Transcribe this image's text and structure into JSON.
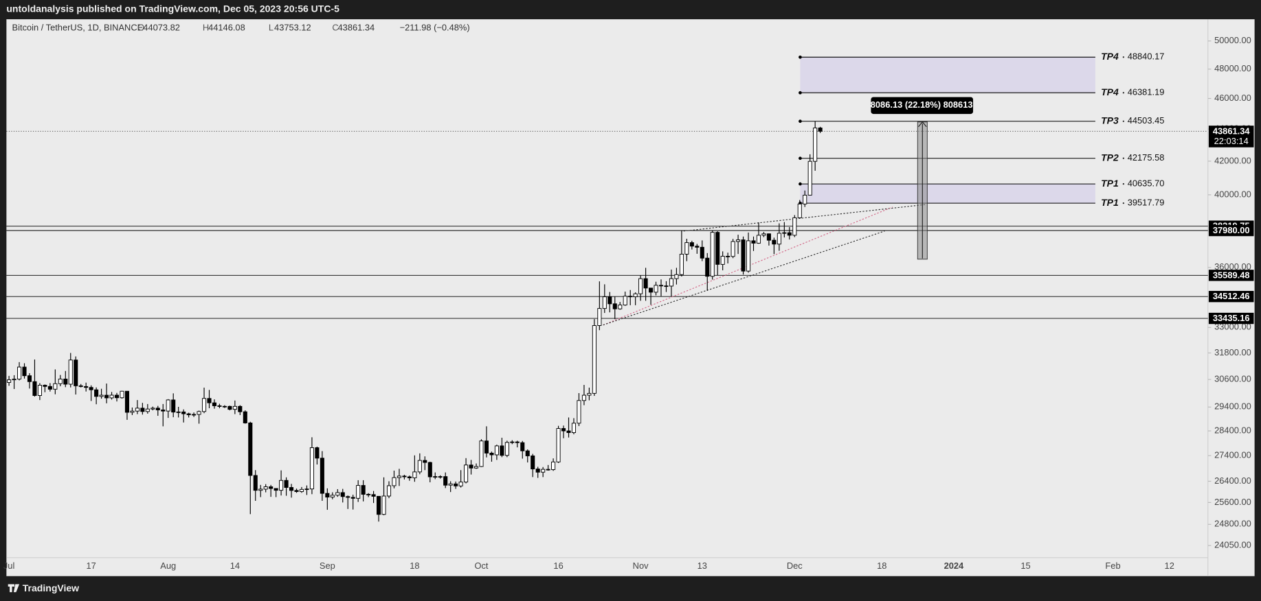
{
  "published_by": "untoldanalysis published on TradingView.com, Dec 05, 2023 20:56 UTC-5",
  "footer": "TradingView",
  "chart_data": {
    "type": "candlestick",
    "symbol": "Bitcoin / TetherUS, 1D, BINANCE",
    "ohlc_labels": [
      "O",
      "H",
      "L",
      "C"
    ],
    "change": "−211.98 (−0.48%)",
    "countdown": "22:03:14",
    "measure_label": "8086.13 (22.18%) 808613",
    "log_scale": true,
    "grid": false,
    "up_color": "#ffffff",
    "down_color": "#000000",
    "wick_color": "#000000",
    "zone_color": "#dcd8ea",
    "line_color": "#000000",
    "ylim": [
      23630,
      51600
    ],
    "yticks": [
      {
        "value": 24050,
        "label": "24050.00"
      },
      {
        "value": 24800,
        "label": "24800.00"
      },
      {
        "value": 25600,
        "label": "25600.00"
      },
      {
        "value": 26400,
        "label": "26400.00"
      },
      {
        "value": 27400,
        "label": "27400.00"
      },
      {
        "value": 28400,
        "label": "28400.00"
      },
      {
        "value": 29400,
        "label": "29400.00"
      },
      {
        "value": 30600,
        "label": "30600.00"
      },
      {
        "value": 31800,
        "label": "31800.00"
      },
      {
        "value": 33000,
        "label": "33000.00"
      },
      {
        "value": 36000,
        "label": "36000.00"
      },
      {
        "value": 40000,
        "label": "40000.00"
      },
      {
        "value": 42000,
        "label": "42000.00"
      },
      {
        "value": 44000,
        "label": "44000.00"
      },
      {
        "value": 46000,
        "label": "46000.00"
      },
      {
        "value": 48000,
        "label": "48000.00"
      },
      {
        "value": 50000,
        "label": "50000.00"
      }
    ],
    "levels": [
      38219.75,
      {
        "value": 37980,
        "label": "37980.00"
      },
      35589.48,
      34512.46,
      33435.16
    ],
    "targets": [
      {
        "name": "TP4",
        "value": 48840.17
      },
      {
        "name": "TP4",
        "value": 46381.19
      },
      {
        "name": "TP3",
        "value": 44503.45
      },
      {
        "name": "TP2",
        "value": 42175.58
      },
      {
        "name": "TP1",
        "value": 40635.7,
        "value_label": "40635.70"
      },
      {
        "name": "TP1",
        "value": 39517.79
      }
    ],
    "categories": [
      "Jul",
      null,
      null,
      null,
      null,
      null,
      null,
      null,
      null,
      null,
      null,
      null,
      null,
      null,
      null,
      null,
      "17",
      null,
      null,
      null,
      null,
      null,
      null,
      null,
      null,
      null,
      null,
      null,
      null,
      null,
      null,
      "Aug",
      null,
      null,
      null,
      null,
      null,
      null,
      null,
      null,
      null,
      null,
      null,
      null,
      "14",
      null,
      null,
      null,
      null,
      null,
      null,
      null,
      null,
      null,
      null,
      null,
      null,
      null,
      null,
      null,
      null,
      null,
      "Sep",
      null,
      null,
      null,
      null,
      null,
      null,
      null,
      null,
      null,
      null,
      null,
      null,
      null,
      null,
      null,
      null,
      "18",
      null,
      null,
      null,
      null,
      null,
      null,
      null,
      null,
      null,
      null,
      null,
      null,
      "Oct",
      null,
      null,
      null,
      null,
      null,
      null,
      null,
      null,
      null,
      null,
      null,
      null,
      null,
      null,
      "16",
      null,
      null,
      null,
      null,
      null,
      null,
      null,
      null,
      null,
      null,
      null,
      null,
      null,
      null,
      null,
      "Nov",
      null,
      null,
      null,
      null,
      null,
      null,
      null,
      null,
      null,
      null,
      null,
      "13",
      null,
      null,
      null,
      null,
      null,
      null,
      null,
      null,
      null,
      null,
      null,
      null,
      null,
      null,
      null,
      null,
      null,
      "Dec",
      null,
      null,
      null,
      null,
      null,
      null,
      null,
      null,
      null,
      null,
      null,
      null,
      null,
      null,
      null,
      null,
      "18",
      null,
      null,
      null,
      null,
      null,
      null,
      null,
      null,
      null,
      null,
      null,
      null,
      null,
      "2024",
      null,
      null,
      null,
      null,
      null,
      null,
      null,
      null,
      null,
      null,
      null,
      null,
      null,
      "15",
      null,
      null,
      null,
      null,
      null,
      null,
      null,
      null,
      null,
      null,
      null,
      null,
      null,
      null,
      null,
      null,
      "Feb",
      null,
      null,
      null,
      null,
      null,
      null,
      null,
      null,
      null,
      null,
      "12",
      null,
      null,
      null,
      null,
      null,
      null,
      null
    ],
    "open": [
      30470,
      30585,
      30617,
      31156,
      30767,
      30505,
      29896,
      30346,
      30292,
      30171,
      30414,
      30620,
      30391,
      31477,
      30320,
      30289,
      30249,
      30145,
      29857,
      29910,
      29794,
      29912,
      29800,
      30083,
      29176,
      29228,
      29354,
      29210,
      29316,
      29354,
      29278,
      29230,
      29705,
      29186,
      29193,
      29114,
      29072,
      29088,
      29210,
      29770,
      29581,
      29455,
      29426,
      29430,
      29303,
      29430,
      29200,
      28730,
      26623,
      26054,
      26100,
      26190,
      26125,
      26056,
      26432,
      26163,
      26050,
      26008,
      26090,
      26107,
      27717,
      27300,
      25940,
      25800,
      25870,
      25970,
      25820,
      25790,
      25755,
      26240,
      25905,
      25895,
      25830,
      25160,
      25840,
      26230,
      26540,
      26600,
      26570,
      26530,
      26760,
      27210,
      27130,
      26570,
      26580,
      26580,
      26250,
      26300,
      26220,
      26370,
      27030,
      26910,
      26970,
      27990,
      27500,
      27430,
      27790,
      27410,
      27930,
      27950,
      27920,
      27590,
      27390,
      26875,
      26750,
      26860,
      26850,
      27150,
      28500,
      28400,
      28330,
      28720,
      29680,
      29910,
      29990,
      33090,
      33920,
      34500,
      34150,
      33900,
      34090,
      34530,
      34500,
      34650,
      35420,
      34940,
      34730,
      35080,
      35050,
      35040,
      35420,
      35630,
      36700,
      37320,
      37130,
      37070,
      36490,
      35540,
      37880,
      36160,
      36590,
      36580,
      37380,
      37470,
      35810,
      37420,
      37290,
      37720,
      37800,
      37450,
      37240,
      37830,
      37860,
      37720,
      38690,
      39470,
      39980,
      41990,
      44073.82,
      null,
      null,
      null,
      null,
      null,
      null,
      null,
      null,
      null,
      null,
      null,
      null,
      null,
      null,
      null,
      null,
      null,
      null,
      null,
      null,
      null,
      null,
      null,
      null,
      null,
      null,
      null,
      null,
      null,
      null,
      null,
      null,
      null,
      null,
      null,
      null,
      null,
      null,
      null,
      null,
      null,
      null,
      null,
      null,
      null,
      null,
      null,
      null,
      null,
      null,
      null,
      null,
      null,
      null,
      null,
      null,
      null,
      null,
      null,
      null,
      null,
      null,
      null,
      null,
      null,
      null,
      null,
      null,
      null,
      null,
      null,
      null,
      null,
      null,
      null
    ],
    "high": [
      30760,
      30790,
      31380,
      31330,
      30880,
      31500,
      30440,
      30380,
      30440,
      31050,
      30800,
      30980,
      31800,
      31640,
      30400,
      30460,
      30340,
      30250,
      30190,
      30420,
      30050,
      30010,
      30100,
      30090,
      29380,
      29700,
      29580,
      29530,
      29420,
      29450,
      29530,
      29740,
      29990,
      29410,
      29300,
      29160,
      29170,
      29250,
      30240,
      30140,
      29730,
      29540,
      29480,
      29460,
      29680,
      29480,
      29260,
      28780,
      26830,
      26260,
      26290,
      26260,
      26130,
      26820,
      26550,
      26300,
      26120,
      26180,
      26240,
      28140,
      27760,
      27580,
      26130,
      25980,
      26100,
      26110,
      25860,
      25890,
      26440,
      26440,
      25950,
      26030,
      25840,
      26550,
      26400,
      26810,
      26880,
      26650,
      26620,
      27410,
      27490,
      27370,
      27160,
      26740,
      26630,
      26740,
      26400,
      26390,
      26830,
      27300,
      27230,
      27090,
      28060,
      28590,
      27560,
      27840,
      28120,
      28000,
      28020,
      28000,
      27990,
      27650,
      27470,
      26960,
      26950,
      27030,
      27290,
      28610,
      28620,
      28960,
      28930,
      30000,
      30360,
      30240,
      33400,
      35280,
      35130,
      34740,
      34500,
      34240,
      34760,
      34840,
      34720,
      35580,
      35980,
      34950,
      35260,
      35380,
      35290,
      35890,
      35980,
      37970,
      37530,
      37420,
      37250,
      37440,
      36760,
      37980,
      37940,
      36850,
      36780,
      37520,
      37750,
      37650,
      37870,
      37650,
      38430,
      37900,
      37820,
      37590,
      38380,
      38450,
      38170,
      38840,
      39700,
      40250,
      42420,
      44490,
      44146.08,
      null,
      null,
      null,
      null,
      null,
      null,
      null,
      null,
      null,
      null,
      null,
      null,
      null,
      null,
      null,
      null,
      null,
      null,
      null,
      null,
      null,
      null,
      null,
      null,
      null,
      null,
      null,
      null,
      null,
      null,
      null,
      null,
      null,
      null,
      null,
      null,
      null,
      null,
      null,
      null,
      null,
      null,
      null,
      null,
      null,
      null,
      null,
      null,
      null,
      null,
      null,
      null,
      null,
      null,
      null,
      null,
      null,
      null,
      null,
      null,
      null,
      null,
      null,
      null,
      null,
      null,
      null,
      null,
      null,
      null,
      null,
      null,
      null,
      null,
      null
    ],
    "low": [
      30320,
      30180,
      30560,
      30640,
      30200,
      29850,
      29700,
      30040,
      30070,
      29950,
      30300,
      30260,
      30250,
      29940,
      30250,
      30070,
      29660,
      29520,
      29760,
      29560,
      29720,
      29640,
      29760,
      28860,
      29060,
      29100,
      29080,
      29120,
      29260,
      29030,
      28590,
      28940,
      28970,
      28960,
      28750,
      28960,
      28980,
      28700,
      29140,
      29350,
      29330,
      29350,
      29360,
      29260,
      29100,
      29060,
      28700,
      25170,
      25660,
      25800,
      25980,
      25810,
      25800,
      25860,
      25850,
      25780,
      25960,
      25960,
      25880,
      25910,
      27050,
      25660,
      25330,
      25720,
      25810,
      25600,
      25360,
      25340,
      25620,
      25640,
      25800,
      25580,
      24900,
      25130,
      25760,
      26130,
      26220,
      26470,
      26420,
      26380,
      26670,
      26830,
      26360,
      26480,
      26500,
      26140,
      25990,
      26110,
      26160,
      26320,
      26660,
      26880,
      26950,
      27330,
      27160,
      27230,
      27340,
      27340,
      27860,
      27730,
      27280,
      27130,
      26560,
      26530,
      26560,
      26810,
      26800,
      27110,
      28100,
      28130,
      28260,
      28600,
      29480,
      29690,
      29880,
      32870,
      33700,
      33730,
      33400,
      33860,
      34050,
      34080,
      34080,
      34300,
      34300,
      34100,
      34570,
      34530,
      34740,
      34520,
      35120,
      35530,
      36330,
      36950,
      36720,
      36330,
      34800,
      35370,
      35600,
      35850,
      36210,
      36490,
      36710,
      35630,
      35730,
      36870,
      37260,
      37620,
      37160,
      36700,
      36880,
      37600,
      37490,
      37620,
      38650,
      39300,
      39980,
      41420,
      43753.12,
      null,
      null,
      null,
      null,
      null,
      null,
      null,
      null,
      null,
      null,
      null,
      null,
      null,
      null,
      null,
      null,
      null,
      null,
      null,
      null,
      null,
      null,
      null,
      null,
      null,
      null,
      null,
      null,
      null,
      null,
      null,
      null,
      null,
      null,
      null,
      null,
      null,
      null,
      null,
      null,
      null,
      null,
      null,
      null,
      null,
      null,
      null,
      null,
      null,
      null,
      null,
      null,
      null,
      null,
      null,
      null,
      null,
      null,
      null,
      null,
      null,
      null,
      null,
      null,
      null,
      null,
      null,
      null,
      null,
      null,
      null,
      null,
      null,
      null,
      null
    ],
    "close": [
      30585,
      30617,
      31156,
      30767,
      30505,
      29896,
      30346,
      30292,
      30171,
      30414,
      30620,
      30391,
      31477,
      30320,
      30289,
      30249,
      30145,
      29857,
      29910,
      29794,
      29912,
      29800,
      30083,
      29176,
      29228,
      29354,
      29210,
      29316,
      29354,
      29278,
      29230,
      29705,
      29186,
      29193,
      29114,
      29072,
      29088,
      29210,
      29770,
      29581,
      29455,
      29426,
      29430,
      29303,
      29430,
      29200,
      28730,
      26623,
      26054,
      26100,
      26190,
      26125,
      26056,
      26432,
      26163,
      26050,
      26008,
      26090,
      26107,
      27717,
      27300,
      25940,
      25800,
      25870,
      25970,
      25820,
      25790,
      25755,
      26240,
      25905,
      25895,
      25830,
      25160,
      25840,
      26230,
      26540,
      26600,
      26570,
      26530,
      26760,
      27210,
      27130,
      26570,
      26580,
      26580,
      26250,
      26300,
      26220,
      26370,
      27030,
      26910,
      26970,
      27990,
      27500,
      27430,
      27790,
      27410,
      27930,
      27950,
      27920,
      27590,
      27390,
      26875,
      26750,
      26860,
      26850,
      27150,
      28500,
      28400,
      28330,
      28720,
      29680,
      29910,
      29990,
      33090,
      33920,
      34500,
      34150,
      33900,
      34090,
      34530,
      34500,
      34650,
      35420,
      34940,
      34730,
      35080,
      35050,
      35040,
      35420,
      35630,
      36700,
      37320,
      37130,
      37070,
      36490,
      35540,
      37880,
      36160,
      36590,
      36580,
      37380,
      37470,
      35810,
      37420,
      37290,
      37720,
      37800,
      37450,
      37240,
      37830,
      37860,
      37720,
      38690,
      39470,
      39980,
      41990,
      44073.32,
      43861.34,
      null,
      null,
      null,
      null,
      null,
      null,
      null,
      null,
      null,
      null,
      null,
      null,
      null,
      null,
      null,
      null,
      null,
      null,
      null,
      null,
      null,
      null,
      null,
      null,
      null,
      null,
      null,
      null,
      null,
      null,
      null,
      null,
      null,
      null,
      null,
      null,
      null,
      null,
      null,
      null,
      null,
      null,
      null,
      null,
      null,
      null,
      null,
      null,
      null,
      null,
      null,
      null,
      null,
      null,
      null,
      null,
      null,
      null,
      null,
      null,
      null,
      null,
      null,
      null,
      null,
      null,
      null,
      null,
      null,
      null,
      null,
      null,
      null,
      null,
      null
    ]
  }
}
